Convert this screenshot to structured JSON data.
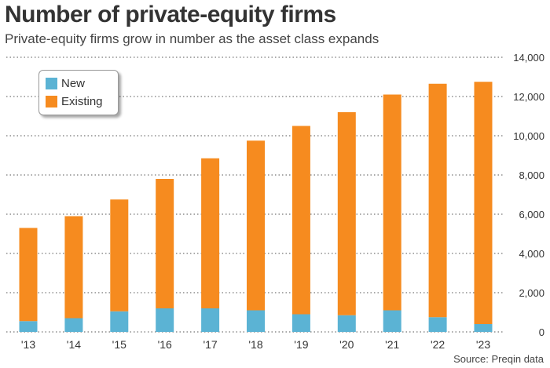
{
  "header": {
    "title": "Number of private-equity firms",
    "subtitle": "Private-equity firms grow in number as the asset class expands"
  },
  "footer": {
    "source": "Source: Preqin data"
  },
  "colors": {
    "new": "#5bb3d4",
    "existing": "#f68b1f",
    "grid": "#555555"
  },
  "chart_data": {
    "type": "bar",
    "stacked": true,
    "title": "Number of private-equity firms",
    "subtitle": "Private-equity firms grow in number as the asset class expands",
    "categories": [
      "'13",
      "'14",
      "'15",
      "'16",
      "'17",
      "'18",
      "'19",
      "'20",
      "'21",
      "'22",
      "'23"
    ],
    "series": [
      {
        "name": "New",
        "values": [
          550,
          700,
          1050,
          1200,
          1200,
          1100,
          900,
          850,
          1100,
          750,
          400
        ]
      },
      {
        "name": "Existing",
        "values": [
          4750,
          5200,
          5700,
          6600,
          7650,
          8650,
          9600,
          10350,
          11000,
          11900,
          12350
        ]
      }
    ],
    "ylim": [
      0,
      14000
    ],
    "yticks": [
      0,
      2000,
      4000,
      6000,
      8000,
      10000,
      12000,
      14000
    ],
    "ytick_labels": [
      "0",
      "2,000",
      "4,000",
      "6,000",
      "8,000",
      "10,000",
      "12,000",
      "14,000"
    ],
    "grid": true,
    "legend": {
      "position": "top-left",
      "entries": [
        "New",
        "Existing"
      ]
    },
    "xlabel": "",
    "ylabel": ""
  }
}
